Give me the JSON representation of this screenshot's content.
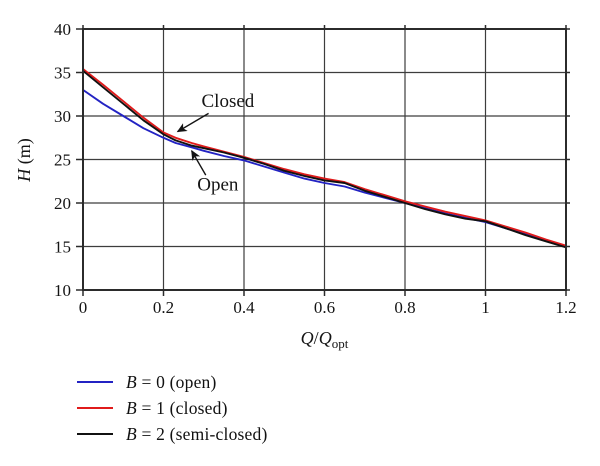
{
  "chart_data": {
    "type": "line",
    "title": "",
    "xlabel": {
      "var1": "Q",
      "slash": "/",
      "var2": "Q",
      "sub": "opt"
    },
    "ylabel": {
      "var": "H",
      "unit": " (m)"
    },
    "xlim": [
      0,
      1.2
    ],
    "ylim": [
      10,
      40
    ],
    "x_ticks": [
      0,
      0.2,
      0.4,
      0.6,
      0.8,
      1,
      1.2
    ],
    "x_tick_labels": [
      "0",
      "0.2",
      "0.4",
      "0.6",
      "0.8",
      "1",
      "1.2"
    ],
    "y_ticks": [
      10,
      15,
      20,
      25,
      30,
      35,
      40
    ],
    "y_tick_labels": [
      "10",
      "15",
      "20",
      "25",
      "30",
      "35",
      "40"
    ],
    "grid": true,
    "grid_color": "#3d3d3d",
    "frame_color": "#2b2b2b",
    "legend_position": "below-left",
    "series": [
      {
        "name": "B = 0 (open)",
        "color": "#2323c3",
        "points": [
          [
            0,
            33.0
          ],
          [
            0.05,
            31.4
          ],
          [
            0.1,
            30.0
          ],
          [
            0.15,
            28.6
          ],
          [
            0.2,
            27.5
          ],
          [
            0.23,
            26.9
          ],
          [
            0.27,
            26.4
          ],
          [
            0.3,
            26.0
          ],
          [
            0.35,
            25.4
          ],
          [
            0.4,
            24.9
          ],
          [
            0.45,
            24.2
          ],
          [
            0.5,
            23.5
          ],
          [
            0.55,
            22.8
          ],
          [
            0.6,
            22.3
          ],
          [
            0.65,
            21.9
          ],
          [
            0.7,
            21.2
          ],
          [
            0.75,
            20.6
          ],
          [
            0.8,
            20.0
          ],
          [
            0.85,
            19.4
          ],
          [
            0.9,
            18.8
          ],
          [
            0.95,
            18.3
          ],
          [
            1.0,
            17.8
          ],
          [
            1.05,
            17.1
          ],
          [
            1.1,
            16.4
          ],
          [
            1.15,
            15.7
          ],
          [
            1.2,
            15.0
          ]
        ]
      },
      {
        "name": "B = 1 (closed)",
        "color": "#e01b1b",
        "points": [
          [
            0,
            35.4
          ],
          [
            0.05,
            33.6
          ],
          [
            0.1,
            31.7
          ],
          [
            0.15,
            29.8
          ],
          [
            0.2,
            28.1
          ],
          [
            0.23,
            27.5
          ],
          [
            0.27,
            26.9
          ],
          [
            0.3,
            26.5
          ],
          [
            0.35,
            25.9
          ],
          [
            0.4,
            25.3
          ],
          [
            0.45,
            24.6
          ],
          [
            0.5,
            23.9
          ],
          [
            0.55,
            23.3
          ],
          [
            0.6,
            22.8
          ],
          [
            0.65,
            22.4
          ],
          [
            0.7,
            21.6
          ],
          [
            0.75,
            20.9
          ],
          [
            0.8,
            20.2
          ],
          [
            0.85,
            19.6
          ],
          [
            0.9,
            19.0
          ],
          [
            0.95,
            18.5
          ],
          [
            1.0,
            18.0
          ],
          [
            1.05,
            17.3
          ],
          [
            1.1,
            16.6
          ],
          [
            1.15,
            15.8
          ],
          [
            1.2,
            15.1
          ]
        ]
      },
      {
        "name": "B = 2 (semi-closed)",
        "color": "#111111",
        "points": [
          [
            0,
            35.2
          ],
          [
            0.05,
            33.3
          ],
          [
            0.1,
            31.4
          ],
          [
            0.15,
            29.5
          ],
          [
            0.2,
            27.9
          ],
          [
            0.23,
            27.2
          ],
          [
            0.27,
            26.6
          ],
          [
            0.3,
            26.3
          ],
          [
            0.35,
            25.8
          ],
          [
            0.4,
            25.2
          ],
          [
            0.45,
            24.5
          ],
          [
            0.5,
            23.7
          ],
          [
            0.55,
            23.1
          ],
          [
            0.6,
            22.6
          ],
          [
            0.65,
            22.3
          ],
          [
            0.7,
            21.4
          ],
          [
            0.75,
            20.7
          ],
          [
            0.8,
            20.0
          ],
          [
            0.85,
            19.3
          ],
          [
            0.9,
            18.7
          ],
          [
            0.95,
            18.2
          ],
          [
            1.0,
            17.9
          ],
          [
            1.05,
            17.1
          ],
          [
            1.1,
            16.3
          ],
          [
            1.15,
            15.6
          ],
          [
            1.2,
            14.9
          ]
        ]
      }
    ],
    "annotations": [
      {
        "text": "Closed",
        "text_xy": [
          0.36,
          31.7
        ],
        "arrow_from": [
          0.312,
          30.3
        ],
        "arrow_to": [
          0.235,
          28.2
        ]
      },
      {
        "text": "Open",
        "text_xy": [
          0.335,
          22.1
        ],
        "arrow_from": [
          0.305,
          23.2
        ],
        "arrow_to": [
          0.27,
          26.0
        ]
      }
    ]
  },
  "legend": {
    "items": [
      {
        "var": "B",
        "rest": "= 0 (open)",
        "color": "#2323c3"
      },
      {
        "var": "B",
        "rest": "= 1 (closed)",
        "color": "#e01b1b"
      },
      {
        "var": "B",
        "rest": "= 2 (semi-closed)",
        "color": "#111111"
      }
    ]
  },
  "colors": {
    "background": "#ffffff",
    "text": "#141414"
  }
}
